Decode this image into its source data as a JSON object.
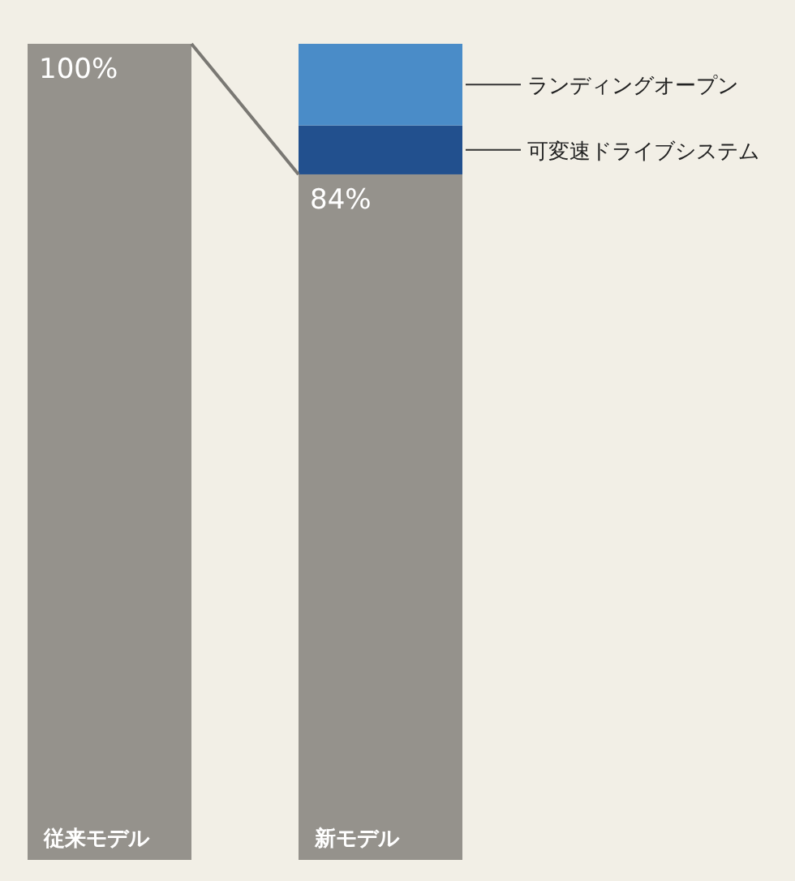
{
  "chart_data": {
    "type": "bar",
    "stacked": true,
    "categories": [
      "従来モデル",
      "新モデル"
    ],
    "series": [
      {
        "color": "#95928c",
        "values": [
          100,
          84
        ],
        "value_labels": [
          "100%",
          "84%"
        ]
      },
      {
        "name": "可変速ドライブシステム",
        "color": "#22508e",
        "values": [
          null,
          6
        ]
      },
      {
        "name": "ランディングオープン",
        "color": "#4a8cc8",
        "values": [
          null,
          10
        ]
      }
    ]
  }
}
